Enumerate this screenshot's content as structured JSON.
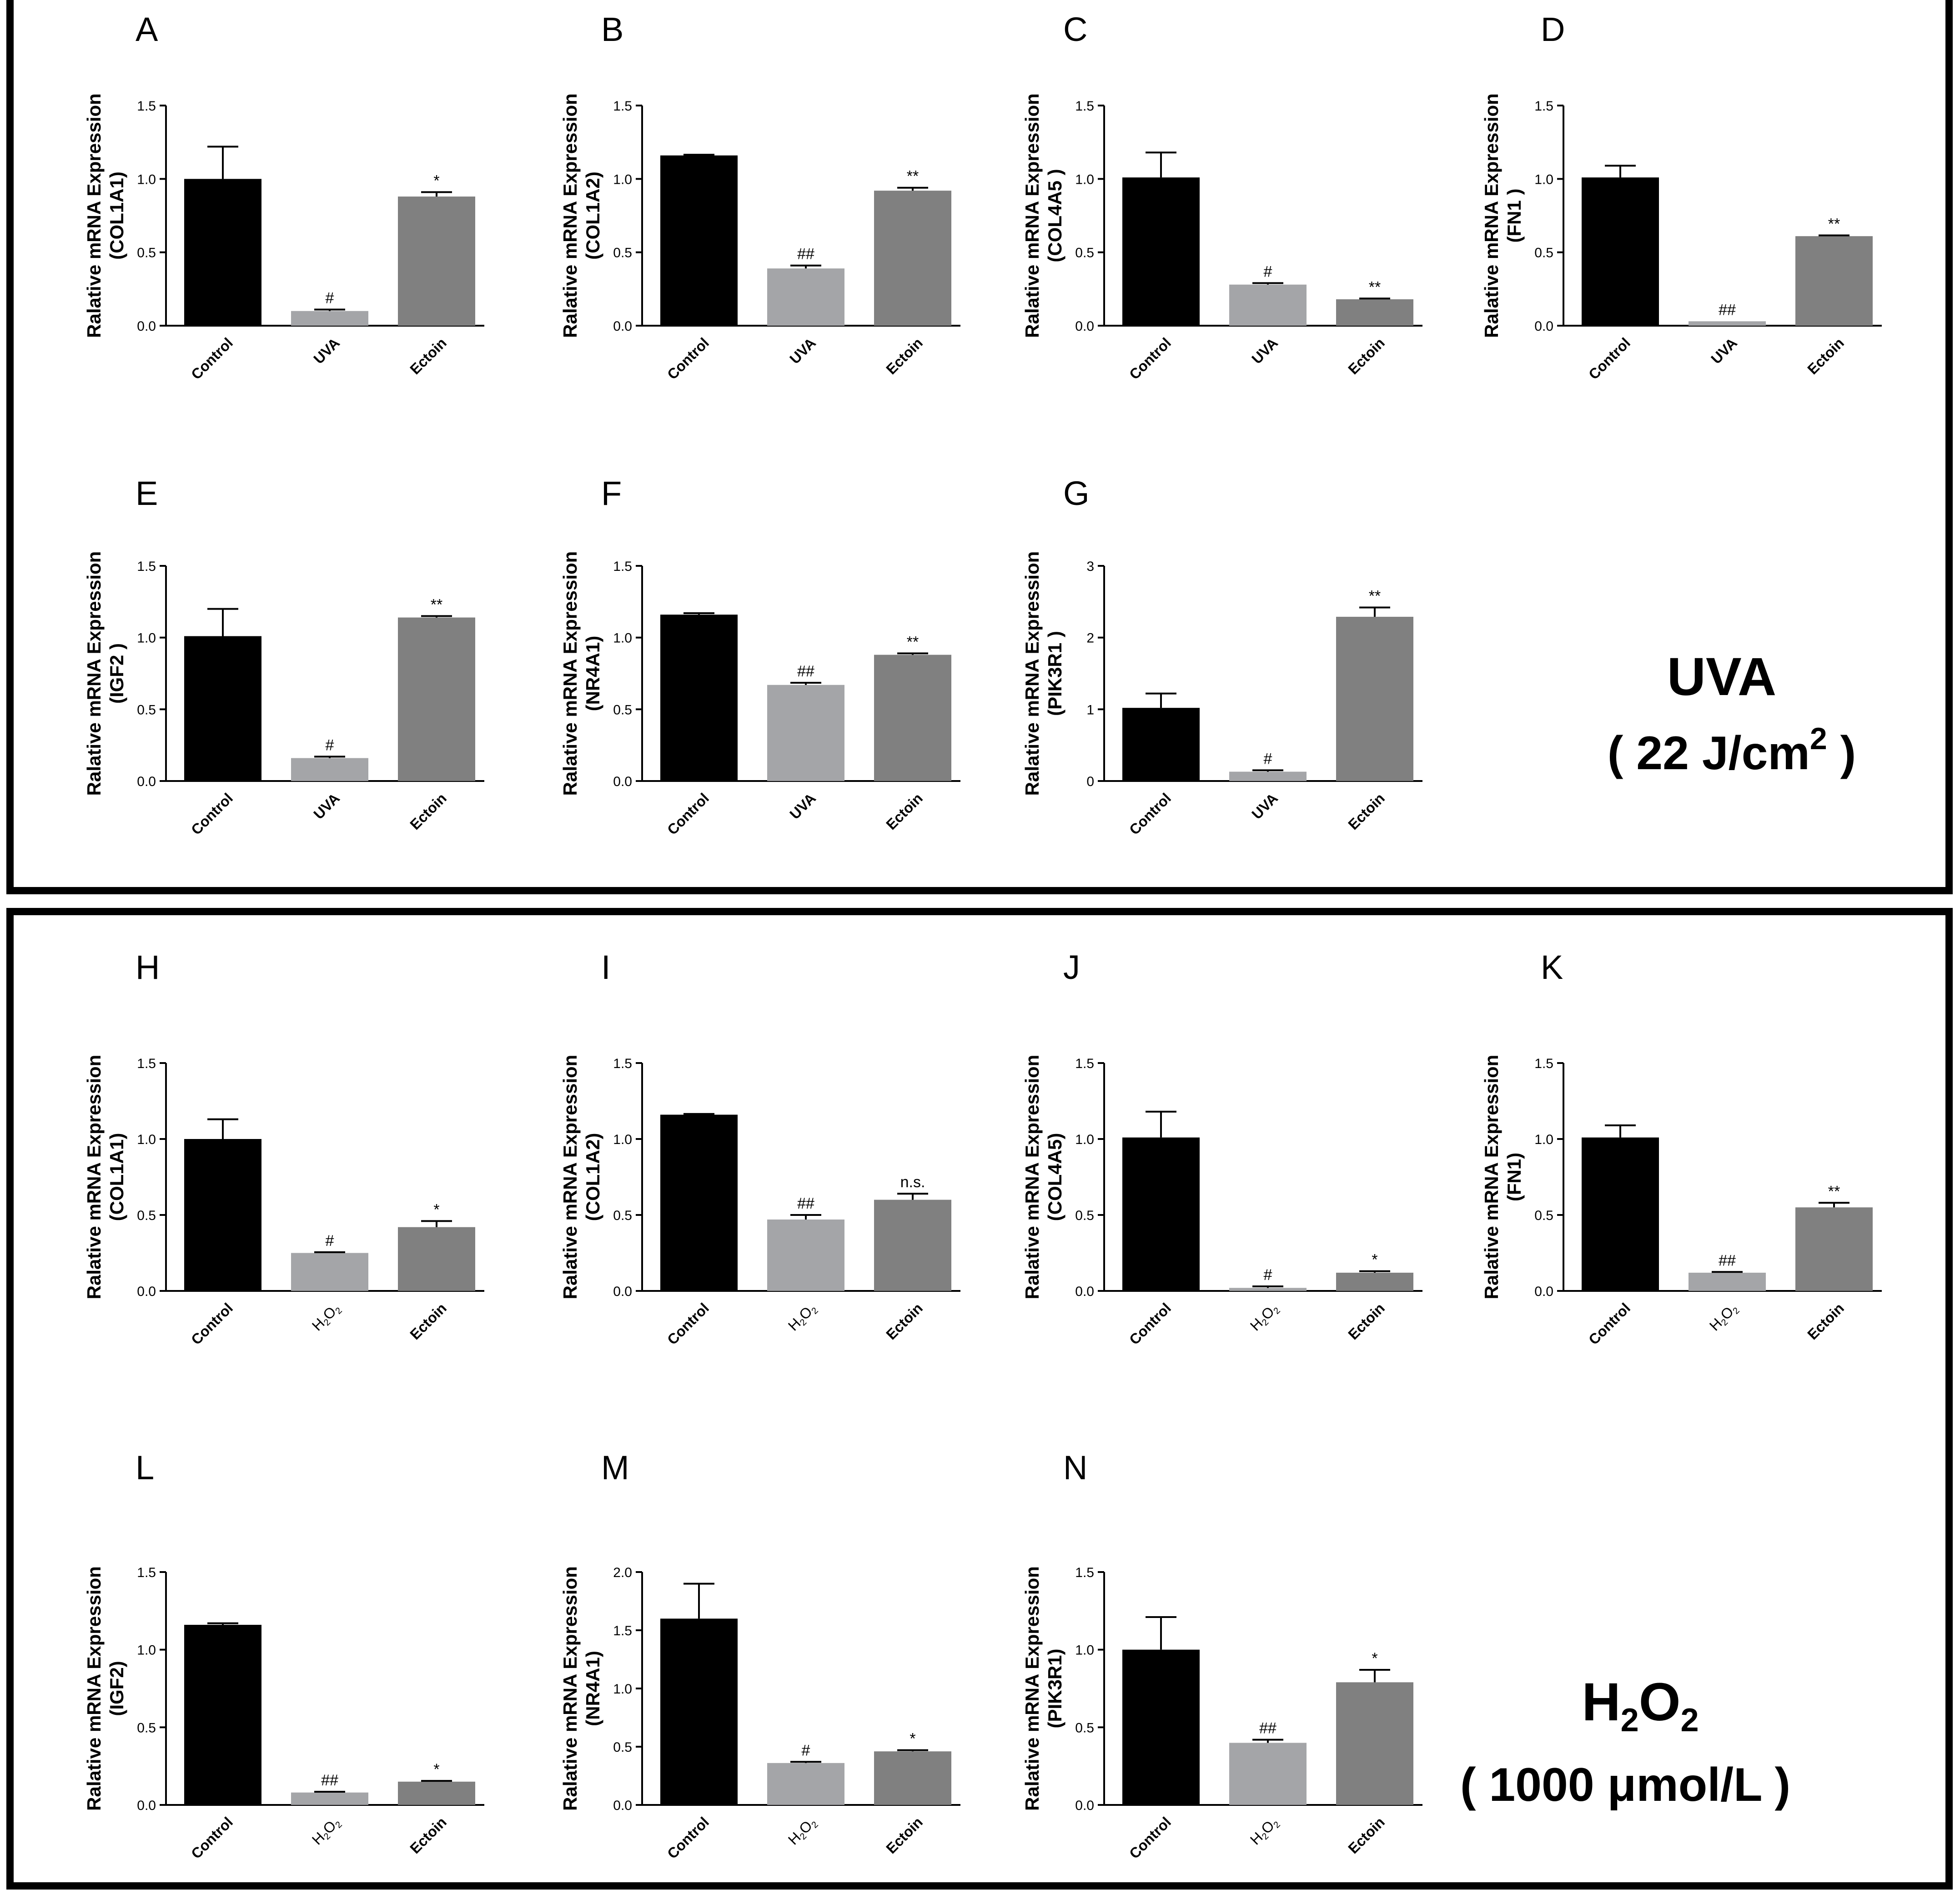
{
  "figure": {
    "colors": {
      "control": "#000000",
      "treatment": "#a4a5a8",
      "ectoin": "#808080",
      "frame": "#000000"
    },
    "sections": [
      {
        "id": "uva",
        "condition_title": "UVA",
        "condition_subtitle": "( 22 J/cm",
        "condition_superscript": "2",
        "condition_suffix": " )"
      },
      {
        "id": "h2o2",
        "condition_title_main": "H",
        "condition_title_sub1": "2",
        "condition_title_mid": "O",
        "condition_title_sub2": "2",
        "condition_subtitle": "( 1000 μmol/L )"
      }
    ]
  },
  "chart_data": [
    {
      "type": "bar",
      "panel": "A",
      "section": "uva",
      "ylabel_line1": "Ralative mRNA Expression",
      "ylabel_line2": "(COL1A1)",
      "ylim": [
        0,
        1.5
      ],
      "ytick_labels": [
        "0.0",
        "0.5",
        "1.0",
        "1.5"
      ],
      "categories": [
        "Control",
        "UVA",
        "Ectoin"
      ],
      "values": [
        1.0,
        0.1,
        0.88
      ],
      "errors": [
        0.22,
        0.01,
        0.03
      ],
      "annotations": [
        "",
        "#",
        "*"
      ]
    },
    {
      "type": "bar",
      "panel": "B",
      "section": "uva",
      "ylabel_line1": "Ralative mRNA Expression",
      "ylabel_line2": "(COL1A2)",
      "ylim": [
        0,
        1.5
      ],
      "ytick_labels": [
        "0.0",
        "0.5",
        "1.0",
        "1.5"
      ],
      "categories": [
        "Control",
        "UVA",
        "Ectoin"
      ],
      "values": [
        1.16,
        0.39,
        0.92
      ],
      "errors": [
        0.005,
        0.02,
        0.02
      ],
      "annotations": [
        "",
        "##",
        "**"
      ]
    },
    {
      "type": "bar",
      "panel": "C",
      "section": "uva",
      "ylabel_line1": "Ralative mRNA Expression",
      "ylabel_line2": "(COL4A5 )",
      "ylim": [
        0,
        1.5
      ],
      "ytick_labels": [
        "0.0",
        "0.5",
        "1.0",
        "1.5"
      ],
      "categories": [
        "Control",
        "UVA",
        "Ectoin"
      ],
      "values": [
        1.01,
        0.28,
        0.18
      ],
      "errors": [
        0.17,
        0.01,
        0.005
      ],
      "annotations": [
        "",
        "#",
        "**"
      ]
    },
    {
      "type": "bar",
      "panel": "D",
      "section": "uva",
      "ylabel_line1": "Ralative mRNA Expression",
      "ylabel_line2": "(FN1 )",
      "ylim": [
        0,
        1.5
      ],
      "ytick_labels": [
        "0.0",
        "0.5",
        "1.0",
        "1.5"
      ],
      "categories": [
        "Control",
        "UVA",
        "Ectoin"
      ],
      "values": [
        1.01,
        0.03,
        0.61
      ],
      "errors": [
        0.08,
        0.0,
        0.005
      ],
      "annotations": [
        "",
        "##",
        "**"
      ]
    },
    {
      "type": "bar",
      "panel": "E",
      "section": "uva",
      "ylabel_line1": "Ralative mRNA Expression",
      "ylabel_line2": "(IGF2 )",
      "ylim": [
        0,
        1.5
      ],
      "ytick_labels": [
        "0.0",
        "0.5",
        "1.0",
        "1.5"
      ],
      "categories": [
        "Control",
        "UVA",
        "Ectoin"
      ],
      "values": [
        1.01,
        0.16,
        1.14
      ],
      "errors": [
        0.19,
        0.01,
        0.01
      ],
      "annotations": [
        "",
        "#",
        "**"
      ]
    },
    {
      "type": "bar",
      "panel": "F",
      "section": "uva",
      "ylabel_line1": "Ralative mRNA Expression",
      "ylabel_line2": "(NR4A1)",
      "ylim": [
        0,
        1.5
      ],
      "ytick_labels": [
        "0.0",
        "0.5",
        "1.0",
        "1.5"
      ],
      "categories": [
        "Control",
        "UVA",
        "Ectoin"
      ],
      "values": [
        1.16,
        0.67,
        0.88
      ],
      "errors": [
        0.01,
        0.015,
        0.01
      ],
      "annotations": [
        "",
        "##",
        "**"
      ]
    },
    {
      "type": "bar",
      "panel": "G",
      "section": "uva",
      "ylabel_line1": "Ralative mRNA Expression",
      "ylabel_line2": "(PIK3R1 )",
      "ylim": [
        0,
        3
      ],
      "ytick_labels": [
        "0",
        "1",
        "2",
        "3"
      ],
      "categories": [
        "Control",
        "UVA",
        "Ectoin"
      ],
      "values": [
        1.02,
        0.13,
        2.29
      ],
      "errors": [
        0.2,
        0.02,
        0.13
      ],
      "annotations": [
        "",
        "#",
        "**"
      ]
    },
    {
      "type": "bar",
      "panel": "H",
      "section": "h2o2",
      "ylabel_line1": "Ralative mRNA Expression",
      "ylabel_line2": "(COL1A1)",
      "ylim": [
        0,
        1.5
      ],
      "ytick_labels": [
        "0.0",
        "0.5",
        "1.0",
        "1.5"
      ],
      "categories": [
        "Control",
        "H2O2",
        "Ectoin"
      ],
      "values": [
        1.0,
        0.25,
        0.42
      ],
      "errors": [
        0.13,
        0.005,
        0.04
      ],
      "annotations": [
        "",
        "#",
        "*"
      ]
    },
    {
      "type": "bar",
      "panel": "I",
      "section": "h2o2",
      "ylabel_line1": "Ralative mRNA Expression",
      "ylabel_line2": "(COL1A2)",
      "ylim": [
        0,
        1.5
      ],
      "ytick_labels": [
        "0.0",
        "0.5",
        "1.0",
        "1.5"
      ],
      "categories": [
        "Control",
        "H2O2",
        "Ectoin"
      ],
      "values": [
        1.16,
        0.47,
        0.6
      ],
      "errors": [
        0.005,
        0.03,
        0.04
      ],
      "annotations": [
        "",
        "##",
        "n.s."
      ]
    },
    {
      "type": "bar",
      "panel": "J",
      "section": "h2o2",
      "ylabel_line1": "Ralative mRNA Expression",
      "ylabel_line2": "(COL4A5)",
      "ylim": [
        0,
        1.5
      ],
      "ytick_labels": [
        "0.0",
        "0.5",
        "1.0",
        "1.5"
      ],
      "categories": [
        "Control",
        "H2O2",
        "Ectoin"
      ],
      "values": [
        1.01,
        0.02,
        0.12
      ],
      "errors": [
        0.17,
        0.01,
        0.01
      ],
      "annotations": [
        "",
        "#",
        "*"
      ]
    },
    {
      "type": "bar",
      "panel": "K",
      "section": "h2o2",
      "ylabel_line1": "Ralative mRNA Expression",
      "ylabel_line2": "(FN1)",
      "ylim": [
        0,
        1.5
      ],
      "ytick_labels": [
        "0.0",
        "0.5",
        "1.0",
        "1.5"
      ],
      "categories": [
        "Control",
        "H2O2",
        "Ectoin"
      ],
      "values": [
        1.01,
        0.12,
        0.55
      ],
      "errors": [
        0.08,
        0.005,
        0.03
      ],
      "annotations": [
        "",
        "##",
        "**"
      ]
    },
    {
      "type": "bar",
      "panel": "L",
      "section": "h2o2",
      "ylabel_line1": "Ralative mRNA Expression",
      "ylabel_line2": "(IGF2)",
      "ylim": [
        0,
        1.5
      ],
      "ytick_labels": [
        "0.0",
        "0.5",
        "1.0",
        "1.5"
      ],
      "categories": [
        "Control",
        "H2O2",
        "Ectoin"
      ],
      "values": [
        1.16,
        0.08,
        0.15
      ],
      "errors": [
        0.01,
        0.005,
        0.005
      ],
      "annotations": [
        "",
        "##",
        "*"
      ]
    },
    {
      "type": "bar",
      "panel": "M",
      "section": "h2o2",
      "ylabel_line1": "Ralative mRNA Expression",
      "ylabel_line2": "(NR4A1)",
      "ylim": [
        0,
        2.0
      ],
      "ytick_labels": [
        "0.0",
        "0.5",
        "1.0",
        "1.5",
        "2.0"
      ],
      "categories": [
        "Control",
        "H2O2",
        "Ectoin"
      ],
      "values": [
        1.6,
        0.36,
        0.46
      ],
      "errors": [
        0.3,
        0.01,
        0.01
      ],
      "annotations": [
        "",
        "#",
        "*"
      ]
    },
    {
      "type": "bar",
      "panel": "N",
      "section": "h2o2",
      "ylabel_line1": "Ralative mRNA Expression",
      "ylabel_line2": "(PIK3R1)",
      "ylim": [
        0,
        1.5
      ],
      "ytick_labels": [
        "0.0",
        "0.5",
        "1.0",
        "1.5"
      ],
      "categories": [
        "Control",
        "H2O2",
        "Ectoin"
      ],
      "values": [
        1.0,
        0.4,
        0.79
      ],
      "errors": [
        0.21,
        0.02,
        0.08
      ],
      "annotations": [
        "",
        "##",
        "*"
      ]
    }
  ]
}
